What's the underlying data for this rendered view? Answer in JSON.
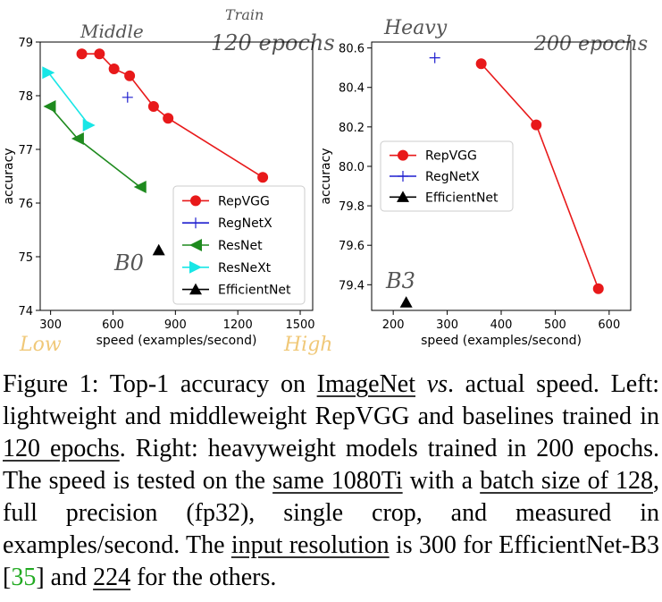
{
  "left_annotations": {
    "middle": "Middle",
    "train": "Train",
    "epochs": "120 epochs",
    "b0": "B0",
    "low": "Low",
    "high": "High"
  },
  "right_annotations": {
    "heavy": "Heavy",
    "epochs": "200 epochs",
    "b3": "B3"
  },
  "colors": {
    "repvgg": "#e8191a",
    "regnetx": "#1f1fcf",
    "resnet": "#1e8a1e",
    "resnext": "#18e6e6",
    "efficientnet": "#000000"
  },
  "chart_data": [
    {
      "type": "scatter",
      "xlabel": "speed (examples/second)",
      "ylabel": "accuracy",
      "xlim": [
        250,
        1560
      ],
      "ylim": [
        74.0,
        79.0
      ],
      "xticks": [
        "300",
        "600",
        "900",
        "1200",
        "1500"
      ],
      "yticks": [
        "74",
        "75",
        "76",
        "77",
        "78",
        "79"
      ],
      "legend_position": "lower-right",
      "series": [
        {
          "name": "RepVGG",
          "marker": "circle",
          "line": true,
          "x": [
            450,
            535,
            605,
            680,
            795,
            865,
            1320
          ],
          "y": [
            78.78,
            78.78,
            78.5,
            78.37,
            77.8,
            77.58,
            76.48
          ]
        },
        {
          "name": "RegNetX",
          "marker": "plus",
          "line": false,
          "x": [
            670
          ],
          "y": [
            77.97
          ]
        },
        {
          "name": "ResNet",
          "marker": "triangle-left",
          "line": true,
          "x": [
            295,
            430,
            730
          ],
          "y": [
            77.8,
            77.2,
            76.3
          ]
        },
        {
          "name": "ResNeXt",
          "marker": "triangle-right",
          "line": true,
          "x": [
            290,
            485
          ],
          "y": [
            78.43,
            77.45
          ]
        },
        {
          "name": "EfficientNet",
          "marker": "triangle-up",
          "line": false,
          "x": [
            820
          ],
          "y": [
            75.12
          ]
        }
      ]
    },
    {
      "type": "scatter",
      "xlabel": "speed (examples/second)",
      "ylabel": "accuracy",
      "xlim": [
        160,
        640
      ],
      "ylim": [
        79.27,
        80.63
      ],
      "xticks": [
        "200",
        "300",
        "400",
        "500",
        "600"
      ],
      "yticks": [
        "79.4",
        "79.6",
        "79.8",
        "80.0",
        "80.2",
        "80.4",
        "80.6"
      ],
      "legend_position": "center-left",
      "series": [
        {
          "name": "RepVGG",
          "marker": "circle",
          "line": true,
          "x": [
            363,
            465,
            580
          ],
          "y": [
            80.52,
            80.21,
            79.38
          ]
        },
        {
          "name": "RegNetX",
          "marker": "plus",
          "line": false,
          "x": [
            277
          ],
          "y": [
            80.55
          ]
        },
        {
          "name": "EfficientNet",
          "marker": "triangle-up",
          "line": false,
          "x": [
            224
          ],
          "y": [
            79.31
          ]
        }
      ]
    }
  ],
  "caption": {
    "label": "Figure 1:",
    "part1": " Top-1 accuracy on ",
    "imagenet": "ImageNet",
    "part2": " ",
    "vs": "vs",
    "part3": ". actual speed. Left: lightweight and middleweight RepVGG and baselines trained in ",
    "epochs120": "120 epochs",
    "part4": ". Right: heavyweight models trained in 200 epochs. The speed is tested on the ",
    "same": "same 1080Ti",
    "part5": " with a ",
    "batch": "batch size of 128",
    "part6": ", full precision (fp32), single crop, and measured in examples/second. The ",
    "input": "input resolution",
    "part7": " is 300 for EfficientNet-B3 [",
    "ref": "35",
    "part8": "] and ",
    "n224": "224",
    "part9": " for the others."
  }
}
